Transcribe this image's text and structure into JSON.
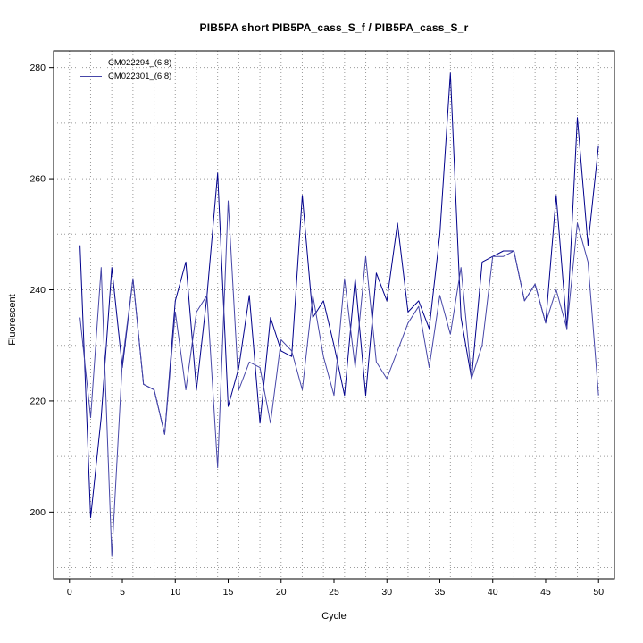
{
  "chart_data": {
    "type": "line",
    "title": "PIB5PA short PIB5PA_cass_S_f / PIB5PA_cass_S_r",
    "xlabel": "Cycle",
    "ylabel": "Fluorescent",
    "xlim": [
      -1.5,
      51.5
    ],
    "ylim": [
      188,
      283
    ],
    "xticks": [
      0,
      5,
      10,
      15,
      20,
      25,
      30,
      35,
      40,
      45,
      50
    ],
    "yticks": [
      200,
      220,
      240,
      260,
      280
    ],
    "grid": true,
    "grid_style": "dotted",
    "grid_color": "#9a9a9a",
    "legend_position": "top-left",
    "x": [
      1,
      2,
      3,
      4,
      5,
      6,
      7,
      8,
      9,
      10,
      11,
      12,
      13,
      14,
      15,
      16,
      17,
      18,
      19,
      20,
      21,
      22,
      23,
      24,
      25,
      26,
      27,
      28,
      29,
      30,
      31,
      32,
      33,
      34,
      35,
      36,
      37,
      38,
      39,
      40,
      41,
      42,
      43,
      44,
      45,
      46,
      47,
      48,
      49,
      50
    ],
    "series": [
      {
        "name": "CM022294_(6:8)",
        "color": "#00008b",
        "values": [
          248,
          199,
          217,
          244,
          226,
          242,
          223,
          222,
          214,
          238,
          245,
          222,
          239,
          261,
          219,
          226,
          239,
          216,
          235,
          229,
          228,
          257,
          235,
          238,
          230,
          221,
          242,
          221,
          243,
          238,
          252,
          236,
          238,
          233,
          250,
          279,
          235,
          224,
          245,
          246,
          247,
          247,
          238,
          241,
          234,
          257,
          233,
          271,
          248,
          266
        ]
      },
      {
        "name": "CM022301_(6:8)",
        "color": "#4646a8",
        "values": [
          235,
          217,
          244,
          192,
          227,
          242,
          223,
          222,
          214,
          236,
          222,
          236,
          239,
          208,
          256,
          222,
          227,
          226,
          216,
          231,
          229,
          222,
          239,
          228,
          221,
          242,
          226,
          246,
          227,
          224,
          229,
          234,
          237,
          226,
          239,
          232,
          244,
          224,
          230,
          246,
          246,
          247,
          238,
          241,
          234,
          240,
          233,
          252,
          245,
          221
        ]
      }
    ]
  }
}
